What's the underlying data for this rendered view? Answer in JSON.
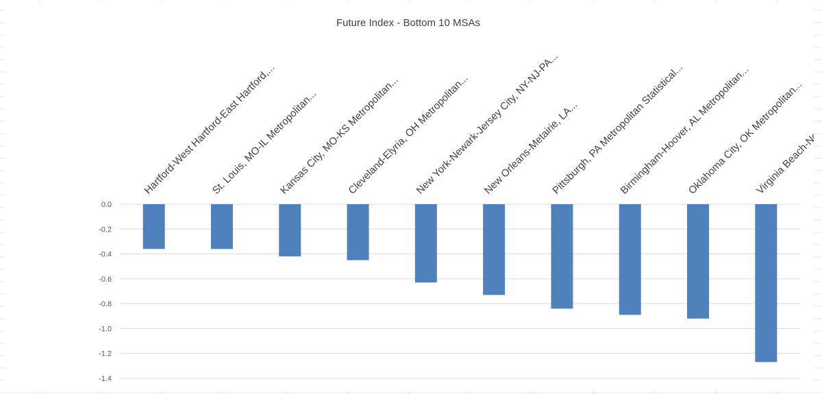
{
  "chart_data": {
    "type": "bar",
    "title": "Future Index - Bottom 10 MSAs",
    "xlabel": "",
    "ylabel": "",
    "categories": [
      "Hartford-West Hartford-East Hartford,...",
      "St. Louis, MO-IL Metropolitan...",
      "Kansas City, MO-KS Metropolitan...",
      "Cleveland-Elyria, OH Metropolitan...",
      "New York-Newark-Jersey City, NY-NJ-PA...",
      "New Orleans-Metairie, LA...",
      "Pittsburgh, PA Metropolitan Statistical...",
      "Birmingham-Hoover, AL Metropolitan...",
      "Oklahoma City, OK Metropolitan...",
      "Virginia Beach-Norfolk-Newport News, VA-NC..."
    ],
    "values": [
      -0.36,
      -0.36,
      -0.42,
      -0.45,
      -0.63,
      -0.73,
      -0.84,
      -0.89,
      -0.92,
      -1.27
    ],
    "ylim": [
      -1.4,
      0.0
    ],
    "yticks": [
      "0.0",
      "-0.2",
      "-0.4",
      "-0.6",
      "-0.8",
      "-1.0",
      "-1.2",
      "-1.4"
    ],
    "grid": true,
    "legend": "none",
    "bar_color": "#4f81bd",
    "gridline_color": "#d9d9d9"
  }
}
